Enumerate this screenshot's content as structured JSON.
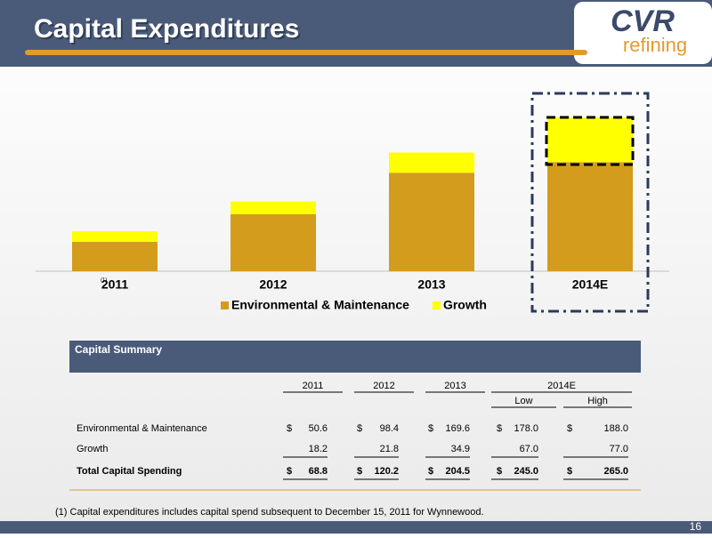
{
  "header": {
    "title": "Capital Expenditures",
    "logo_main": "CVR",
    "logo_sub": "refining"
  },
  "chart_data": {
    "type": "bar",
    "stacked": true,
    "categories": [
      "2011",
      "2012",
      "2013",
      "2014E"
    ],
    "footnote_marker": "(1)",
    "series": [
      {
        "name": "Environmental & Maintenance",
        "color": "#d49c1c",
        "values": [
          50.6,
          98.4,
          169.6,
          188.0
        ]
      },
      {
        "name": "Growth",
        "color": "#ffff00",
        "values": [
          18.2,
          21.8,
          34.9,
          77.0
        ]
      }
    ],
    "legend": "bottom"
  },
  "table": {
    "title": "Capital Summary",
    "columns": [
      "2011",
      "2012",
      "2013",
      "2014E"
    ],
    "subcolumns": [
      "Low",
      "High"
    ],
    "rows": [
      {
        "label": "Environmental & Maintenance",
        "cells": [
          {
            "currency": "$",
            "value": "50.6"
          },
          {
            "currency": "$",
            "value": "98.4"
          },
          {
            "currency": "$",
            "value": "169.6"
          },
          {
            "currency": "$",
            "value": "178.0"
          },
          {
            "currency": "$",
            "value": "188.0"
          }
        ]
      },
      {
        "label": "Growth",
        "cells": [
          {
            "value": "18.2"
          },
          {
            "value": "21.8"
          },
          {
            "value": "34.9"
          },
          {
            "value": "67.0"
          },
          {
            "value": "77.0"
          }
        ]
      },
      {
        "label": "Total Capital Spending",
        "bold": true,
        "cells": [
          {
            "currency": "$",
            "value": "68.8"
          },
          {
            "currency": "$",
            "value": "120.2"
          },
          {
            "currency": "$",
            "value": "204.5"
          },
          {
            "currency": "$",
            "value": "245.0"
          },
          {
            "currency": "$",
            "value": "265.0"
          }
        ]
      }
    ]
  },
  "footnote": "(1) Capital expenditures includes capital spend subsequent to December 15, 2011 for Wynnewood.",
  "page_number": "16"
}
